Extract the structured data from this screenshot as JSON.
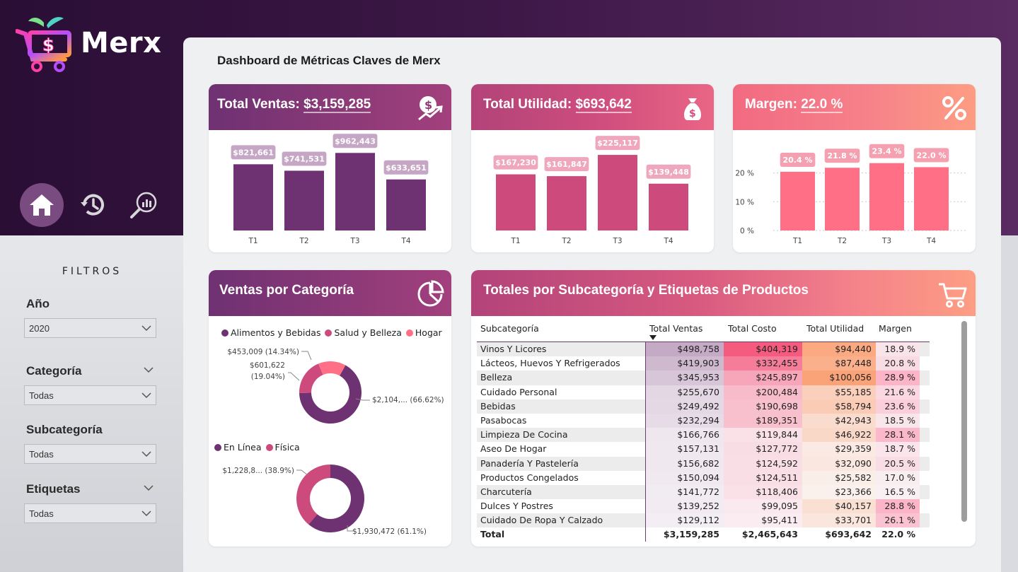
{
  "brand": {
    "name": "Merx"
  },
  "nav": {
    "items": [
      {
        "id": "home",
        "icon": "home-icon"
      },
      {
        "id": "history",
        "icon": "history-icon"
      },
      {
        "id": "analysis",
        "icon": "search-chart-icon"
      }
    ]
  },
  "filters": {
    "title": "FILTROS",
    "year": {
      "label": "Año",
      "value": "2020"
    },
    "category": {
      "label": "Categoría",
      "value": "Todas"
    },
    "subcategory": {
      "label": "Subcategoría",
      "value": "Todas"
    },
    "tags": {
      "label": "Etiquetas",
      "value": "Todas"
    }
  },
  "dashboard": {
    "title": "Dashboard de Métricas Claves de Merx"
  },
  "colors": {
    "purple": "#6e3172",
    "pink": "#cc4b7c",
    "coral": "#ff6f86",
    "label_purple": "#c6a6c5",
    "label_pink": "#eea7bd",
    "label_coral": "#f5a0b0"
  },
  "kpi": {
    "sales": {
      "label": "Total Ventas:",
      "value": "$3,159,285",
      "icon": "money-growth-icon"
    },
    "profit": {
      "label": "Total Utilidad:",
      "value": "$693,642",
      "icon": "money-bag-icon"
    },
    "margin": {
      "label": "Margen:",
      "value": "22.0 %",
      "icon": "percent-icon"
    }
  },
  "chart_data": [
    {
      "type": "bar",
      "name": "sales_by_quarter",
      "categories": [
        "T1",
        "T2",
        "T3",
        "T4"
      ],
      "values": [
        821661,
        741531,
        962443,
        633651
      ],
      "labels": [
        "$821,661",
        "$741,531",
        "$962,443",
        "$633,651"
      ],
      "ylim": [
        0,
        1000000
      ]
    },
    {
      "type": "bar",
      "name": "profit_by_quarter",
      "categories": [
        "T1",
        "T2",
        "T3",
        "T4"
      ],
      "values": [
        167230,
        161847,
        225117,
        139448
      ],
      "labels": [
        "$167,230",
        "$161,847",
        "$225,117",
        "$139,448"
      ],
      "ylim": [
        0,
        240000
      ]
    },
    {
      "type": "bar",
      "name": "margin_by_quarter",
      "categories": [
        "T1",
        "T2",
        "T3",
        "T4"
      ],
      "values": [
        20.4,
        21.8,
        23.4,
        22.0
      ],
      "labels": [
        "20.4 %",
        "21.8 %",
        "23.4 %",
        "22.0 %"
      ],
      "yticks": [
        "0 %",
        "10 %",
        "20 %"
      ],
      "ytick_values": [
        0,
        10,
        20
      ],
      "ylim": [
        0,
        28
      ],
      "grid": true
    },
    {
      "type": "pie",
      "name": "sales_by_category",
      "title": "Ventas por Categoría",
      "categories": [
        "Alimentos y Bebidas",
        "Salud y Belleza",
        "Hogar"
      ],
      "values": [
        66.62,
        19.04,
        14.34
      ],
      "labels": [
        "$2,104,... (66.62%)",
        "$601,622",
        "(19.04%)",
        "$453,009 (14.34%)"
      ],
      "colors": [
        "#6e3172",
        "#cc4b7c",
        "#ff6f86"
      ]
    },
    {
      "type": "pie",
      "name": "sales_by_channel",
      "categories": [
        "En Línea",
        "Física"
      ],
      "values": [
        61.1,
        38.9
      ],
      "labels": [
        "$1,930,472 (61.1%)",
        "$1,228,8... (38.9%)"
      ],
      "colors": [
        "#6e3172",
        "#cc4b7c"
      ]
    },
    {
      "type": "table",
      "name": "subcategory_totals",
      "title": "Totales por Subcategoría y Etiquetas de Productos",
      "columns": [
        "Subcategoría",
        "Total Ventas",
        "Total Costo",
        "Total Utilidad",
        "Margen"
      ],
      "rows": [
        [
          "Vinos Y Licores",
          "$498,758",
          "$404,319",
          "$94,440",
          "18.9 %"
        ],
        [
          "Lácteos, Huevos Y Refrigerados",
          "$419,903",
          "$332,455",
          "$87,448",
          "20.8 %"
        ],
        [
          "Belleza",
          "$345,953",
          "$245,897",
          "$100,056",
          "28.9 %"
        ],
        [
          "Cuidado Personal",
          "$255,670",
          "$200,484",
          "$55,185",
          "21.6 %"
        ],
        [
          "Bebidas",
          "$249,492",
          "$190,698",
          "$58,794",
          "23.6 %"
        ],
        [
          "Pasabocas",
          "$232,294",
          "$189,351",
          "$42,943",
          "18.5 %"
        ],
        [
          "Limpieza De Cocina",
          "$166,766",
          "$119,844",
          "$46,922",
          "28.1 %"
        ],
        [
          "Aseo De Hogar",
          "$157,131",
          "$127,772",
          "$29,359",
          "18.7 %"
        ],
        [
          "Panadería Y Pastelería",
          "$156,682",
          "$124,592",
          "$32,090",
          "20.5 %"
        ],
        [
          "Productos Congelados",
          "$150,094",
          "$124,511",
          "$25,582",
          "17.0 %"
        ],
        [
          "Charcutería",
          "$141,772",
          "$118,406",
          "$23,366",
          "16.5 %"
        ],
        [
          "Dulces Y Postres",
          "$139,252",
          "$99,095",
          "$40,157",
          "28.8 %"
        ],
        [
          "Cuidado De Ropa Y Calzado",
          "$129,112",
          "$95,411",
          "$33,701",
          "26.1 %"
        ]
      ],
      "total": [
        "Total",
        "$3,159,285",
        "$2,465,643",
        "$693,642",
        "22.0 %"
      ]
    }
  ]
}
